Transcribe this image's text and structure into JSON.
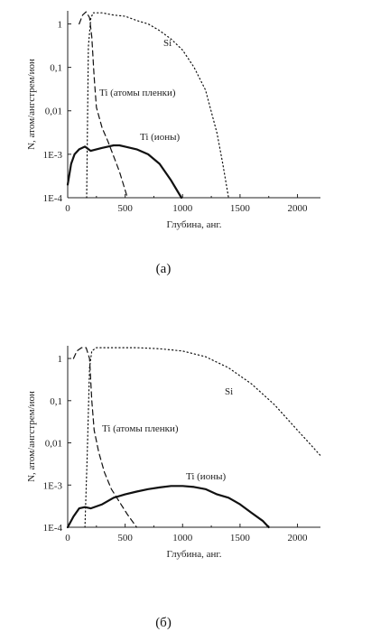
{
  "chart_data": [
    {
      "type": "line",
      "caption": "(а)",
      "xlabel": "Глубина, анг.",
      "ylabel": "N, атом/ангстрем/ион",
      "log_y": true,
      "xlim": [
        0,
        2200
      ],
      "ylim": [
        0.0001,
        2
      ],
      "xticks": [
        0,
        500,
        1000,
        1500,
        2000
      ],
      "xtick_labels": [
        "0",
        "500",
        "1000",
        "1500",
        "2000"
      ],
      "yticks": [
        1,
        0.1,
        0.01,
        0.001,
        0.0001
      ],
      "ytick_labels": [
        "1",
        "0,1",
        "0,01",
        "1E-3",
        "1E-4"
      ],
      "annotations": [
        {
          "text": "Si",
          "series": "Si"
        },
        {
          "text": "Ti (атомы пленки)",
          "series": "Ti (атомы пленки)"
        },
        {
          "text": "Ti (ионы)",
          "series": "Ti (ионы)"
        }
      ],
      "series": [
        {
          "name": "Si",
          "style": "dotted",
          "x": [
            165,
            180,
            200,
            220,
            300,
            400,
            500,
            600,
            700,
            800,
            900,
            1000,
            1100,
            1200,
            1300,
            1350,
            1400
          ],
          "y": [
            0.0001,
            0.3,
            1.3,
            1.8,
            1.8,
            1.6,
            1.5,
            1.2,
            1.0,
            0.7,
            0.45,
            0.25,
            0.1,
            0.03,
            0.003,
            0.0006,
            0.0001
          ]
        },
        {
          "name": "Ti (атомы пленки)",
          "style": "dashed",
          "x": [
            100,
            130,
            160,
            190,
            210,
            230,
            250,
            300,
            350,
            400,
            450,
            500,
            520
          ],
          "y": [
            1.0,
            1.6,
            1.9,
            1.4,
            0.5,
            0.06,
            0.012,
            0.004,
            0.002,
            0.0009,
            0.0004,
            0.00015,
            0.0001
          ]
        },
        {
          "name": "Ti (ионы)",
          "style": "solid",
          "x": [
            0,
            30,
            60,
            100,
            150,
            200,
            250,
            300,
            350,
            400,
            450,
            500,
            600,
            700,
            800,
            900,
            950,
            990
          ],
          "y": [
            0.0002,
            0.0006,
            0.001,
            0.0013,
            0.0015,
            0.0012,
            0.0013,
            0.0014,
            0.0015,
            0.0016,
            0.0016,
            0.0015,
            0.0013,
            0.001,
            0.0006,
            0.00025,
            0.00015,
            0.0001
          ]
        }
      ]
    },
    {
      "type": "line",
      "caption": "(б)",
      "xlabel": "Глубина, анг.",
      "ylabel": "N, атом/ангстрем/ион",
      "log_y": true,
      "xlim": [
        0,
        2200
      ],
      "ylim": [
        0.0001,
        2
      ],
      "xticks": [
        0,
        500,
        1000,
        1500,
        2000
      ],
      "xtick_labels": [
        "0",
        "500",
        "1000",
        "1500",
        "2000"
      ],
      "yticks": [
        1,
        0.1,
        0.01,
        0.001,
        0.0001
      ],
      "ytick_labels": [
        "1",
        "0,1",
        "0,01",
        "1E-3",
        "1E-4"
      ],
      "annotations": [
        {
          "text": "Si",
          "series": "Si"
        },
        {
          "text": "Ti (атомы пленки)",
          "series": "Ti (атомы пленки)"
        },
        {
          "text": "Ti (ионы)",
          "series": "Ti (ионы)"
        }
      ],
      "series": [
        {
          "name": "Si",
          "style": "dotted",
          "x": [
            150,
            170,
            190,
            210,
            250,
            400,
            600,
            800,
            1000,
            1200,
            1400,
            1600,
            1800,
            2000,
            2100,
            2200
          ],
          "y": [
            0.0001,
            0.005,
            0.6,
            1.5,
            1.8,
            1.8,
            1.8,
            1.7,
            1.5,
            1.1,
            0.6,
            0.25,
            0.08,
            0.02,
            0.01,
            0.005
          ]
        },
        {
          "name": "Ti (атомы пленки)",
          "style": "dashed",
          "x": [
            50,
            80,
            120,
            160,
            190,
            210,
            230,
            270,
            320,
            380,
            450,
            520,
            600
          ],
          "y": [
            1.0,
            1.5,
            1.8,
            1.8,
            1.0,
            0.1,
            0.02,
            0.006,
            0.002,
            0.0008,
            0.0004,
            0.0002,
            0.0001
          ]
        },
        {
          "name": "Ti (ионы)",
          "style": "solid",
          "x": [
            0,
            50,
            100,
            150,
            200,
            300,
            400,
            500,
            600,
            700,
            800,
            900,
            1000,
            1100,
            1200,
            1300,
            1400,
            1500,
            1600,
            1700,
            1750
          ],
          "y": [
            0.0001,
            0.00018,
            0.00028,
            0.0003,
            0.00028,
            0.00035,
            0.0005,
            0.0006,
            0.0007,
            0.0008,
            0.00088,
            0.00095,
            0.00095,
            0.0009,
            0.0008,
            0.0006,
            0.0005,
            0.00035,
            0.00022,
            0.00014,
            0.0001
          ]
        }
      ]
    }
  ]
}
